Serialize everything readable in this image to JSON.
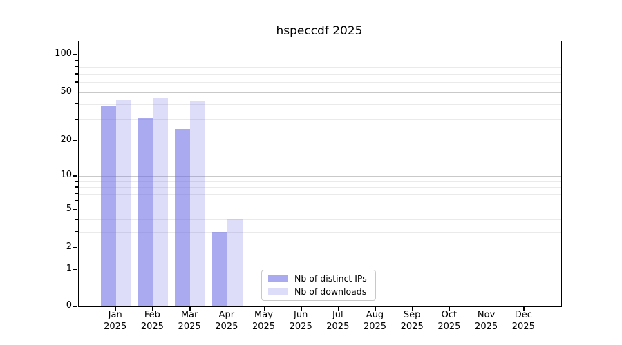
{
  "chart_data": {
    "type": "bar",
    "title": "hspeccdf 2025",
    "categories": [
      "Jan",
      "Feb",
      "Mar",
      "Apr",
      "May",
      "Jun",
      "Jul",
      "Aug",
      "Sep",
      "Oct",
      "Nov",
      "Dec"
    ],
    "x_year_label": "2025",
    "series": [
      {
        "name": "Nb of distinct IPs",
        "color": "rgba(100,100,230,0.55)",
        "color_hex": "#aaaaf0",
        "values": [
          39,
          31,
          25,
          3,
          0,
          0,
          0,
          0,
          0,
          0,
          0,
          0
        ]
      },
      {
        "name": "Nb of downloads",
        "color": "rgba(100,100,230,0.22)",
        "color_hex": "#dcdcf9",
        "values": [
          43,
          45,
          42,
          4,
          0,
          0,
          0,
          0,
          0,
          0,
          0,
          0
        ]
      }
    ],
    "xlabel": "",
    "ylabel": "",
    "yscale": "log1p",
    "ylim": [
      0,
      128
    ],
    "y_ticks_major": [
      0,
      1,
      2,
      5,
      10,
      20,
      50,
      100
    ],
    "y_ticks_minor": [
      3,
      4,
      6,
      7,
      8,
      9,
      30,
      40,
      60,
      70,
      80,
      90
    ],
    "grid": "horizontal",
    "legend_position": "lower-center"
  },
  "colors": {
    "bar_base": "#6464e6",
    "grid_major": "#c9c9c9",
    "grid_minor": "#eaeaea",
    "spine": "#000000",
    "text": "#000000",
    "legend_border": "#c8c8c8",
    "background": "#ffffff"
  }
}
